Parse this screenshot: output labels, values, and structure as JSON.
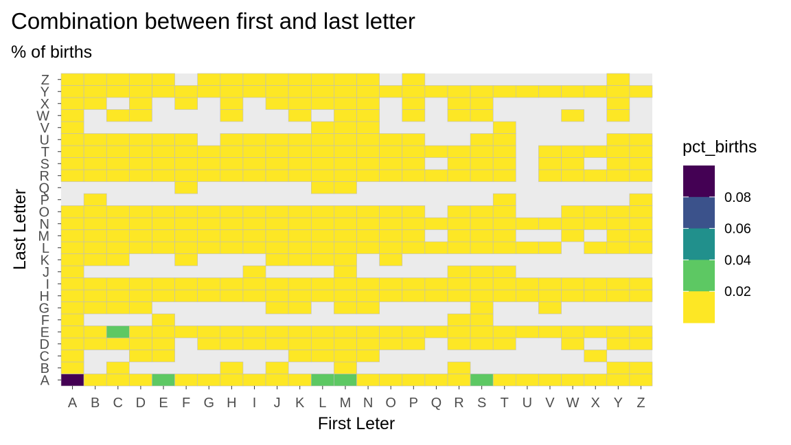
{
  "chart_data": {
    "type": "heatmap",
    "title": "Combination between first and last letter",
    "subtitle": "% of births",
    "xlabel": "First Leter",
    "ylabel": "Last Letter",
    "x_categories": [
      "A",
      "B",
      "C",
      "D",
      "E",
      "F",
      "G",
      "H",
      "I",
      "J",
      "K",
      "L",
      "M",
      "N",
      "O",
      "P",
      "Q",
      "R",
      "S",
      "T",
      "U",
      "V",
      "W",
      "X",
      "Y",
      "Z"
    ],
    "y_categories": [
      "A",
      "B",
      "C",
      "D",
      "E",
      "F",
      "G",
      "H",
      "I",
      "J",
      "K",
      "L",
      "M",
      "N",
      "O",
      "P",
      "Q",
      "R",
      "S",
      "T",
      "U",
      "V",
      "W",
      "X",
      "Y",
      "Z"
    ],
    "legend": {
      "title": "pct_births",
      "position": "right",
      "break_labels": [
        "0.08",
        "0.06",
        "0.04",
        "0.02"
      ],
      "bins": [
        {
          "lower": 0.08,
          "color": "#440154"
        },
        {
          "lower": 0.06,
          "color": "#3b528b"
        },
        {
          "lower": 0.04,
          "color": "#21908c"
        },
        {
          "lower": 0.02,
          "color": "#5dc863"
        },
        {
          "lower": 0.0,
          "color": "#fde725"
        }
      ]
    },
    "missing_color": "#ebebeb",
    "grid": false,
    "value_scale": "fraction of births",
    "rows": {
      "A": [
        0.09,
        0.01,
        0.01,
        0.01,
        0.03,
        0.01,
        0.01,
        0.01,
        0.01,
        0.01,
        0.01,
        0.03,
        0.03,
        0.01,
        0.01,
        0.01,
        0.01,
        0.01,
        0.03,
        0.01,
        0.01,
        0.01,
        0.01,
        0.01,
        0.01,
        0.01
      ],
      "B": [
        0.01,
        null,
        0.01,
        null,
        null,
        null,
        null,
        0.01,
        null,
        0.01,
        null,
        null,
        0.01,
        null,
        null,
        null,
        null,
        0.01,
        null,
        null,
        null,
        null,
        null,
        null,
        0.01,
        0.01
      ],
      "C": [
        0.01,
        null,
        null,
        0.01,
        0.01,
        null,
        null,
        null,
        null,
        null,
        0.01,
        0.01,
        0.01,
        0.01,
        null,
        null,
        null,
        null,
        null,
        null,
        null,
        null,
        null,
        0.01,
        null,
        null
      ],
      "D": [
        0.01,
        0.01,
        0.01,
        0.01,
        0.01,
        null,
        0.01,
        0.01,
        0.01,
        0.01,
        0.01,
        0.01,
        0.01,
        0.01,
        0.01,
        0.01,
        null,
        0.01,
        0.01,
        0.01,
        null,
        null,
        0.01,
        null,
        0.01,
        0.01
      ],
      "E": [
        0.01,
        0.01,
        0.03,
        0.01,
        0.01,
        0.01,
        0.01,
        0.01,
        0.01,
        0.01,
        0.01,
        0.01,
        0.01,
        0.01,
        0.01,
        0.01,
        0.01,
        0.01,
        0.01,
        0.01,
        0.01,
        0.01,
        0.01,
        0.01,
        0.01,
        0.01
      ],
      "F": [
        0.01,
        null,
        null,
        null,
        0.01,
        null,
        null,
        null,
        null,
        null,
        null,
        null,
        null,
        null,
        null,
        null,
        null,
        0.01,
        0.01,
        null,
        null,
        null,
        null,
        null,
        null,
        null
      ],
      "G": [
        0.01,
        0.01,
        0.01,
        0.01,
        null,
        null,
        null,
        null,
        null,
        0.01,
        0.01,
        null,
        0.01,
        0.01,
        null,
        null,
        null,
        null,
        0.01,
        null,
        null,
        0.01,
        null,
        null,
        null,
        null
      ],
      "H": [
        0.01,
        0.01,
        0.01,
        0.01,
        0.01,
        0.01,
        0.01,
        0.01,
        0.01,
        0.01,
        0.01,
        0.01,
        0.01,
        0.01,
        0.01,
        0.01,
        0.01,
        0.01,
        0.01,
        0.01,
        0.01,
        0.01,
        0.01,
        0.01,
        0.01,
        0.01
      ],
      "I": [
        0.01,
        0.01,
        0.01,
        0.01,
        0.01,
        0.01,
        0.01,
        0.01,
        0.01,
        0.01,
        0.01,
        0.01,
        0.01,
        0.01,
        0.01,
        0.01,
        0.01,
        0.01,
        0.01,
        0.01,
        0.01,
        0.01,
        0.01,
        0.01,
        0.01,
        0.01
      ],
      "J": [
        0.01,
        null,
        null,
        null,
        null,
        null,
        null,
        null,
        0.01,
        null,
        null,
        null,
        0.01,
        null,
        null,
        null,
        null,
        0.01,
        0.01,
        0.01,
        null,
        null,
        null,
        null,
        null,
        null
      ],
      "K": [
        0.01,
        0.01,
        0.01,
        null,
        null,
        0.01,
        null,
        null,
        null,
        0.01,
        0.01,
        0.01,
        0.01,
        null,
        0.01,
        null,
        null,
        null,
        null,
        null,
        null,
        null,
        null,
        null,
        null,
        null
      ],
      "L": [
        0.01,
        0.01,
        0.01,
        0.01,
        0.01,
        0.01,
        0.01,
        0.01,
        0.01,
        0.01,
        0.01,
        0.01,
        0.01,
        0.01,
        0.01,
        0.01,
        0.01,
        0.01,
        0.01,
        0.01,
        0.01,
        0.01,
        null,
        0.01,
        0.01,
        0.01
      ],
      "M": [
        0.01,
        0.01,
        0.01,
        0.01,
        0.01,
        0.01,
        0.01,
        0.01,
        0.01,
        0.01,
        0.01,
        0.01,
        0.01,
        0.01,
        0.01,
        0.01,
        null,
        0.01,
        0.01,
        0.01,
        null,
        null,
        0.01,
        null,
        0.01,
        0.01
      ],
      "N": [
        0.01,
        0.01,
        0.01,
        0.01,
        0.01,
        0.01,
        0.01,
        0.01,
        0.01,
        0.01,
        0.01,
        0.01,
        0.01,
        0.01,
        0.01,
        0.01,
        0.01,
        0.01,
        0.01,
        0.01,
        0.01,
        0.01,
        0.01,
        0.01,
        0.01,
        0.01
      ],
      "O": [
        0.01,
        0.01,
        0.01,
        0.01,
        0.01,
        0.01,
        0.01,
        0.01,
        0.01,
        0.01,
        0.01,
        0.01,
        0.01,
        0.01,
        0.01,
        0.01,
        null,
        0.01,
        0.01,
        0.01,
        null,
        null,
        0.01,
        0.01,
        0.01,
        0.01
      ],
      "P": [
        null,
        0.01,
        null,
        null,
        null,
        null,
        null,
        null,
        null,
        null,
        null,
        null,
        null,
        null,
        null,
        null,
        null,
        null,
        null,
        0.01,
        null,
        null,
        null,
        null,
        null,
        0.01
      ],
      "Q": [
        null,
        null,
        null,
        null,
        null,
        0.01,
        null,
        null,
        null,
        null,
        null,
        0.01,
        0.01,
        null,
        null,
        null,
        null,
        null,
        null,
        null,
        null,
        null,
        null,
        null,
        null,
        null
      ],
      "R": [
        0.01,
        0.01,
        0.01,
        0.01,
        0.01,
        0.01,
        0.01,
        0.01,
        0.01,
        0.01,
        0.01,
        0.01,
        0.01,
        0.01,
        0.01,
        0.01,
        0.01,
        0.01,
        0.01,
        0.01,
        null,
        0.01,
        0.01,
        0.01,
        0.01,
        0.01
      ],
      "S": [
        0.01,
        0.01,
        0.01,
        0.01,
        0.01,
        0.01,
        0.01,
        0.01,
        0.01,
        0.01,
        0.01,
        0.01,
        0.01,
        0.01,
        0.01,
        0.01,
        null,
        0.01,
        0.01,
        0.01,
        null,
        0.01,
        0.01,
        null,
        0.01,
        0.01
      ],
      "T": [
        0.01,
        0.01,
        0.01,
        0.01,
        0.01,
        0.01,
        0.01,
        0.01,
        0.01,
        0.01,
        0.01,
        0.01,
        0.01,
        0.01,
        0.01,
        0.01,
        0.01,
        0.01,
        0.01,
        0.01,
        null,
        0.01,
        0.01,
        0.01,
        0.01,
        0.01
      ],
      "U": [
        0.01,
        0.01,
        0.01,
        0.01,
        0.01,
        0.01,
        null,
        0.01,
        0.01,
        0.01,
        0.01,
        0.01,
        0.01,
        0.01,
        0.01,
        0.01,
        null,
        null,
        0.01,
        0.01,
        null,
        null,
        null,
        null,
        0.01,
        0.01
      ],
      "V": [
        0.01,
        null,
        null,
        null,
        null,
        null,
        null,
        null,
        null,
        null,
        null,
        0.01,
        0.01,
        0.01,
        null,
        null,
        null,
        null,
        null,
        0.01,
        null,
        null,
        null,
        null,
        null,
        null
      ],
      "W": [
        0.01,
        null,
        0.01,
        0.01,
        null,
        null,
        null,
        0.01,
        null,
        null,
        0.01,
        null,
        0.01,
        0.01,
        null,
        0.01,
        null,
        0.01,
        0.01,
        null,
        null,
        null,
        0.01,
        null,
        0.01,
        null
      ],
      "X": [
        0.01,
        0.01,
        null,
        0.01,
        null,
        0.01,
        null,
        0.01,
        null,
        0.01,
        0.01,
        0.01,
        0.01,
        0.01,
        null,
        0.01,
        null,
        0.01,
        0.01,
        null,
        null,
        null,
        null,
        null,
        0.01,
        null
      ],
      "Y": [
        0.01,
        0.01,
        0.01,
        0.01,
        0.01,
        0.01,
        0.01,
        0.01,
        0.01,
        0.01,
        0.01,
        0.01,
        0.01,
        0.01,
        0.01,
        0.01,
        0.01,
        0.01,
        0.01,
        0.01,
        0.01,
        0.01,
        0.01,
        0.01,
        0.01,
        0.01
      ],
      "Z": [
        0.01,
        0.01,
        0.01,
        0.01,
        0.01,
        null,
        0.01,
        0.01,
        0.01,
        0.01,
        0.01,
        0.01,
        0.01,
        0.01,
        null,
        0.01,
        null,
        null,
        null,
        null,
        null,
        null,
        null,
        null,
        0.01,
        null
      ]
    }
  }
}
